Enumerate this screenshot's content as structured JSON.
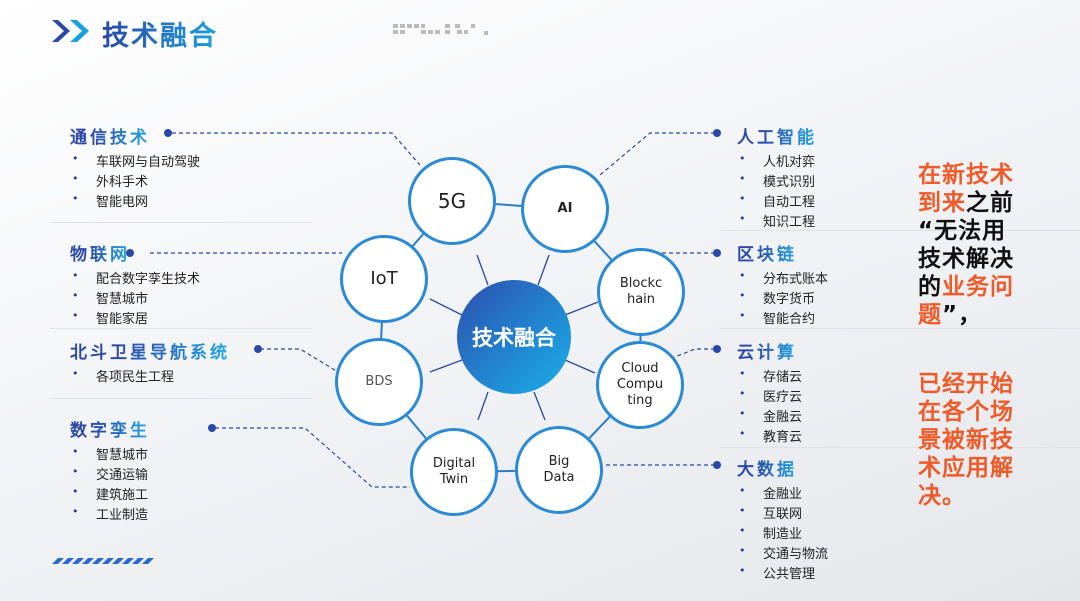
{
  "title": "技术融合",
  "colors": {
    "accent": "#2a48a8",
    "accent_light": "#1aa0e0",
    "highlight": "#f05a28"
  },
  "center": "技术融合",
  "nodes": [
    "5G",
    "AI",
    "Blockchain",
    "Cloud Computing",
    "Big Data",
    "Digital Twin",
    "BDS",
    "IoT"
  ],
  "node_labels": {
    "n5g": "5G",
    "ai": "AI",
    "blockchain": "Blockc\nhain",
    "cloud": "Cloud\nCompu\nting",
    "bigdata": "Big\nData",
    "twin": "Digital\nTwin",
    "bds": "BDS",
    "iot": "IoT"
  },
  "left": [
    {
      "heading": "通信技术",
      "items": [
        "车联网与自动驾驶",
        "外科手术",
        "智能电网"
      ]
    },
    {
      "heading": "物联网",
      "items": [
        "配合数字孪生技术",
        "智慧城市",
        "智能家居"
      ]
    },
    {
      "heading": "北斗卫星导航系统",
      "items": [
        "各项民生工程"
      ]
    },
    {
      "heading": "数字孪生",
      "items": [
        "智慧城市",
        "交通运输",
        "建筑施工",
        "工业制造"
      ]
    }
  ],
  "right": [
    {
      "heading": "人工智能",
      "items": [
        "人机对弈",
        "模式识别",
        "自动工程",
        "知识工程"
      ]
    },
    {
      "heading": "区块链",
      "items": [
        "分布式账本",
        "数字货币",
        "智能合约"
      ]
    },
    {
      "heading": "云计算",
      "items": [
        "存储云",
        "医疗云",
        "金融云",
        "教育云"
      ]
    },
    {
      "heading": "大数据",
      "items": [
        "金融业",
        "互联网",
        "制造业",
        "交通与物流",
        "公共管理"
      ]
    }
  ],
  "side_text": {
    "p1": [
      [
        {
          "t": "在新技术",
          "c": "o"
        }
      ],
      [
        {
          "t": "到来",
          "c": "o"
        },
        {
          "t": "之前",
          "c": "k"
        }
      ],
      [
        {
          "t": "“无法用",
          "c": "k"
        }
      ],
      [
        {
          "t": "技术解决",
          "c": "k"
        }
      ],
      [
        {
          "t": "的",
          "c": "k"
        },
        {
          "t": "业务问",
          "c": "o"
        }
      ],
      [
        {
          "t": "题",
          "c": "o"
        },
        {
          "t": "”，",
          "c": "k"
        }
      ]
    ],
    "p2": [
      "已经开始",
      "在各个场",
      "景被新技",
      "术应用解",
      "决。"
    ]
  }
}
